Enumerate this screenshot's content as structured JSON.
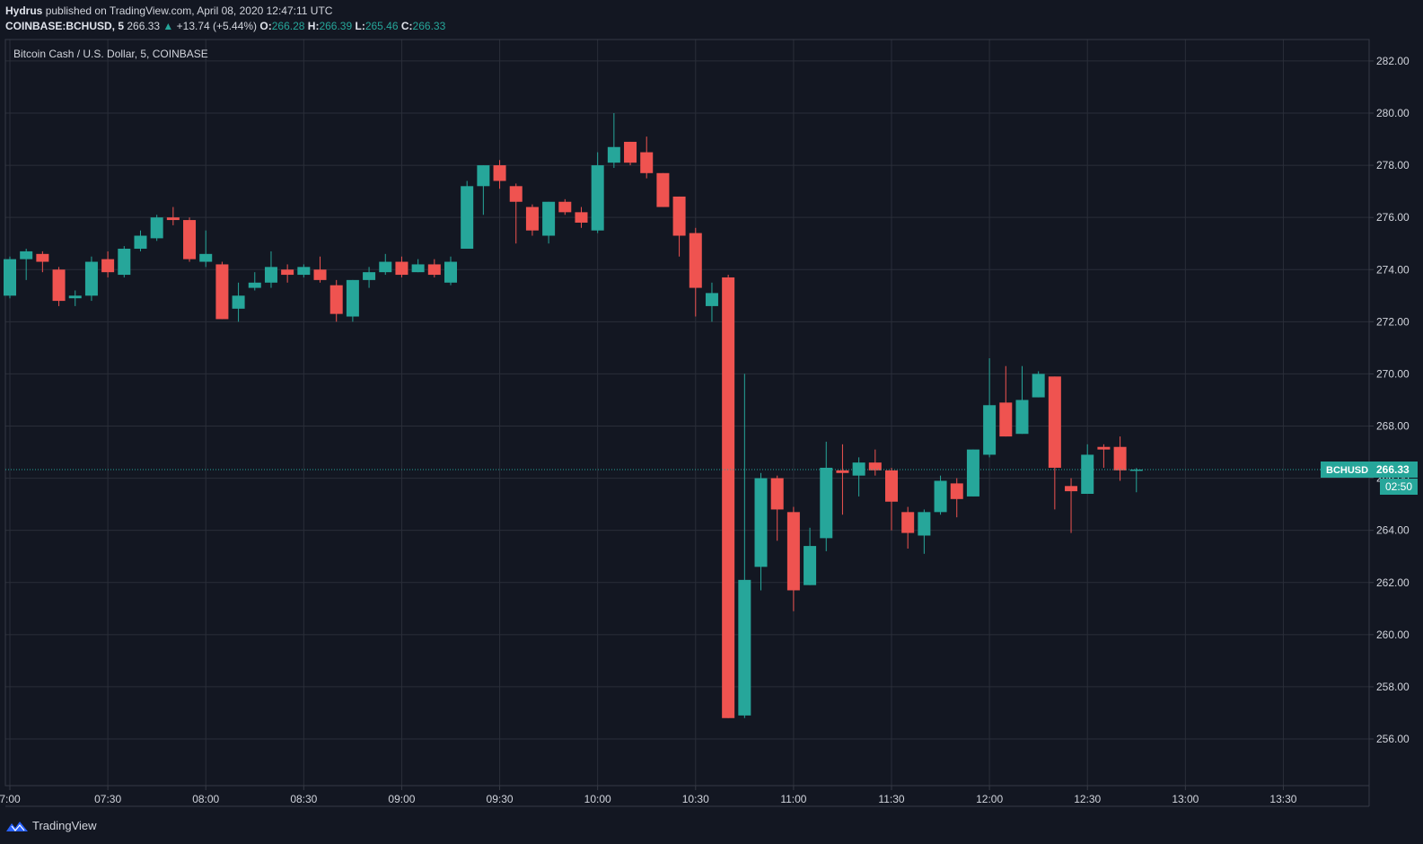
{
  "header": {
    "publisher": "Hydrus",
    "published_text": "published on TradingView.com, April 08, 2020 12:47:11 UTC",
    "symbol": "COINBASE:BCHUSD, 5",
    "last_price": "266.33",
    "change": "+13.74 (+5.44%)",
    "o_label": "O:",
    "o_value": "266.28",
    "h_label": "H:",
    "h_value": "266.39",
    "l_label": "L:",
    "l_value": "265.46",
    "c_label": "C:",
    "c_value": "266.33"
  },
  "footer": {
    "brand": "TradingView"
  },
  "colors": {
    "background": "#131722",
    "grid": "#2a2e39",
    "up": "#26a69a",
    "down": "#ef5350",
    "text": "#d1d4dc"
  },
  "chart_data": {
    "type": "candlestick",
    "title": "Bitcoin Cash / U.S. Dollar, 5, COINBASE",
    "ylim": [
      254.5,
      282.7
    ],
    "y_ticks": [
      "282.00",
      "280.00",
      "278.00",
      "276.00",
      "274.00",
      "272.00",
      "270.00",
      "268.00",
      "266.00",
      "264.00",
      "262.00",
      "260.00",
      "258.00",
      "256.00"
    ],
    "x_ticks": [
      "7:00",
      "07:30",
      "08:00",
      "08:30",
      "09:00",
      "09:30",
      "10:00",
      "10:30",
      "11:00",
      "11:30",
      "12:00",
      "12:30",
      "13:00",
      "13:30"
    ],
    "x_tick_positions": [
      "07:00",
      "07:30",
      "08:00",
      "08:30",
      "09:00",
      "09:30",
      "10:00",
      "10:30",
      "11:00",
      "11:30",
      "12:00",
      "12:30",
      "13:00",
      "13:30"
    ],
    "last_price_label": {
      "symbol": "BCHUSD",
      "price": "266.33",
      "value": 266.33,
      "countdown": "02:50"
    },
    "candles": [
      {
        "t": "07:00",
        "o": 273.0,
        "h": 274.5,
        "l": 272.9,
        "c": 274.4
      },
      {
        "t": "07:05",
        "o": 274.4,
        "h": 274.8,
        "l": 273.6,
        "c": 274.7
      },
      {
        "t": "07:10",
        "o": 274.6,
        "h": 274.7,
        "l": 273.9,
        "c": 274.3
      },
      {
        "t": "07:15",
        "o": 274.0,
        "h": 274.1,
        "l": 272.6,
        "c": 272.8
      },
      {
        "t": "07:20",
        "o": 272.9,
        "h": 273.2,
        "l": 272.6,
        "c": 273.0
      },
      {
        "t": "07:25",
        "o": 273.0,
        "h": 274.5,
        "l": 272.8,
        "c": 274.3
      },
      {
        "t": "07:30",
        "o": 274.4,
        "h": 274.7,
        "l": 273.7,
        "c": 273.9
      },
      {
        "t": "07:35",
        "o": 273.8,
        "h": 274.9,
        "l": 273.7,
        "c": 274.8
      },
      {
        "t": "07:40",
        "o": 274.8,
        "h": 275.5,
        "l": 274.7,
        "c": 275.3
      },
      {
        "t": "07:45",
        "o": 275.2,
        "h": 276.1,
        "l": 275.1,
        "c": 276.0
      },
      {
        "t": "07:50",
        "o": 276.0,
        "h": 276.4,
        "l": 275.7,
        "c": 275.9
      },
      {
        "t": "07:55",
        "o": 275.9,
        "h": 276.0,
        "l": 274.3,
        "c": 274.4
      },
      {
        "t": "08:00",
        "o": 274.3,
        "h": 275.5,
        "l": 274.1,
        "c": 274.6
      },
      {
        "t": "08:05",
        "o": 274.2,
        "h": 274.3,
        "l": 272.1,
        "c": 272.1
      },
      {
        "t": "08:10",
        "o": 272.5,
        "h": 273.5,
        "l": 272.0,
        "c": 273.0
      },
      {
        "t": "08:15",
        "o": 273.3,
        "h": 273.9,
        "l": 273.2,
        "c": 273.5
      },
      {
        "t": "08:20",
        "o": 273.5,
        "h": 274.7,
        "l": 273.3,
        "c": 274.1
      },
      {
        "t": "08:25",
        "o": 274.0,
        "h": 274.2,
        "l": 273.5,
        "c": 273.8
      },
      {
        "t": "08:30",
        "o": 273.8,
        "h": 274.2,
        "l": 273.7,
        "c": 274.1
      },
      {
        "t": "08:35",
        "o": 274.0,
        "h": 274.5,
        "l": 273.5,
        "c": 273.6
      },
      {
        "t": "08:40",
        "o": 273.4,
        "h": 273.6,
        "l": 272.0,
        "c": 272.3
      },
      {
        "t": "08:45",
        "o": 272.2,
        "h": 273.6,
        "l": 272.0,
        "c": 273.6
      },
      {
        "t": "08:50",
        "o": 273.6,
        "h": 274.1,
        "l": 273.3,
        "c": 273.9
      },
      {
        "t": "08:55",
        "o": 273.9,
        "h": 274.6,
        "l": 273.8,
        "c": 274.3
      },
      {
        "t": "09:00",
        "o": 274.3,
        "h": 274.5,
        "l": 273.7,
        "c": 273.8
      },
      {
        "t": "09:05",
        "o": 273.9,
        "h": 274.4,
        "l": 273.9,
        "c": 274.2
      },
      {
        "t": "09:10",
        "o": 274.2,
        "h": 274.4,
        "l": 273.7,
        "c": 273.8
      },
      {
        "t": "09:15",
        "o": 273.5,
        "h": 274.5,
        "l": 273.4,
        "c": 274.3
      },
      {
        "t": "09:20",
        "o": 274.8,
        "h": 277.4,
        "l": 274.8,
        "c": 277.2
      },
      {
        "t": "09:25",
        "o": 277.2,
        "h": 278.0,
        "l": 276.1,
        "c": 278.0
      },
      {
        "t": "09:30",
        "o": 278.0,
        "h": 278.2,
        "l": 277.1,
        "c": 277.4
      },
      {
        "t": "09:35",
        "o": 277.2,
        "h": 277.3,
        "l": 275.0,
        "c": 276.6
      },
      {
        "t": "09:40",
        "o": 276.4,
        "h": 276.5,
        "l": 275.3,
        "c": 275.5
      },
      {
        "t": "09:45",
        "o": 275.3,
        "h": 276.6,
        "l": 275.0,
        "c": 276.6
      },
      {
        "t": "09:50",
        "o": 276.6,
        "h": 276.7,
        "l": 276.1,
        "c": 276.2
      },
      {
        "t": "09:55",
        "o": 276.2,
        "h": 276.4,
        "l": 275.6,
        "c": 275.8
      },
      {
        "t": "10:00",
        "o": 275.5,
        "h": 278.5,
        "l": 275.4,
        "c": 278.0
      },
      {
        "t": "10:05",
        "o": 278.1,
        "h": 280.0,
        "l": 277.9,
        "c": 278.7
      },
      {
        "t": "10:10",
        "o": 278.9,
        "h": 278.9,
        "l": 278.0,
        "c": 278.1
      },
      {
        "t": "10:15",
        "o": 278.5,
        "h": 279.1,
        "l": 277.5,
        "c": 277.7
      },
      {
        "t": "10:20",
        "o": 277.7,
        "h": 277.7,
        "l": 276.4,
        "c": 276.4
      },
      {
        "t": "10:25",
        "o": 276.8,
        "h": 276.8,
        "l": 274.5,
        "c": 275.3
      },
      {
        "t": "10:30",
        "o": 275.4,
        "h": 275.6,
        "l": 272.2,
        "c": 273.3
      },
      {
        "t": "10:35",
        "o": 272.6,
        "h": 273.5,
        "l": 272.0,
        "c": 273.1
      },
      {
        "t": "10:40",
        "o": 273.7,
        "h": 273.8,
        "l": 256.8,
        "c": 256.8
      },
      {
        "t": "10:45",
        "o": 256.9,
        "h": 270.0,
        "l": 256.8,
        "c": 262.1
      },
      {
        "t": "10:50",
        "o": 262.6,
        "h": 266.2,
        "l": 261.7,
        "c": 266.0
      },
      {
        "t": "10:55",
        "o": 266.0,
        "h": 266.1,
        "l": 263.6,
        "c": 264.8
      },
      {
        "t": "11:00",
        "o": 264.7,
        "h": 264.9,
        "l": 260.9,
        "c": 261.7
      },
      {
        "t": "11:05",
        "o": 261.9,
        "h": 264.1,
        "l": 261.9,
        "c": 263.4
      },
      {
        "t": "11:10",
        "o": 263.7,
        "h": 267.4,
        "l": 263.2,
        "c": 266.4
      },
      {
        "t": "11:15",
        "o": 266.3,
        "h": 267.3,
        "l": 264.6,
        "c": 266.2
      },
      {
        "t": "11:20",
        "o": 266.1,
        "h": 266.8,
        "l": 265.3,
        "c": 266.6
      },
      {
        "t": "11:25",
        "o": 266.6,
        "h": 267.1,
        "l": 266.1,
        "c": 266.3
      },
      {
        "t": "11:30",
        "o": 266.3,
        "h": 266.4,
        "l": 264.0,
        "c": 265.1
      },
      {
        "t": "11:35",
        "o": 264.7,
        "h": 264.9,
        "l": 263.3,
        "c": 263.9
      },
      {
        "t": "11:40",
        "o": 263.8,
        "h": 264.8,
        "l": 263.1,
        "c": 264.7
      },
      {
        "t": "11:45",
        "o": 264.7,
        "h": 266.1,
        "l": 264.6,
        "c": 265.9
      },
      {
        "t": "11:50",
        "o": 265.8,
        "h": 266.0,
        "l": 264.5,
        "c": 265.2
      },
      {
        "t": "11:55",
        "o": 265.3,
        "h": 267.1,
        "l": 265.3,
        "c": 267.1
      },
      {
        "t": "12:00",
        "o": 266.9,
        "h": 270.6,
        "l": 266.8,
        "c": 268.8
      },
      {
        "t": "12:05",
        "o": 268.9,
        "h": 270.3,
        "l": 267.6,
        "c": 267.6
      },
      {
        "t": "12:10",
        "o": 267.7,
        "h": 270.3,
        "l": 267.7,
        "c": 269.0
      },
      {
        "t": "12:15",
        "o": 269.1,
        "h": 270.1,
        "l": 269.1,
        "c": 270.0
      },
      {
        "t": "12:20",
        "o": 269.9,
        "h": 269.9,
        "l": 264.8,
        "c": 266.4
      },
      {
        "t": "12:25",
        "o": 265.7,
        "h": 266.0,
        "l": 263.9,
        "c": 265.5
      },
      {
        "t": "12:30",
        "o": 265.4,
        "h": 267.3,
        "l": 265.4,
        "c": 266.9
      },
      {
        "t": "12:35",
        "o": 267.2,
        "h": 267.3,
        "l": 266.4,
        "c": 267.1
      },
      {
        "t": "12:40",
        "o": 267.2,
        "h": 267.6,
        "l": 265.9,
        "c": 266.3
      },
      {
        "t": "12:45",
        "o": 266.28,
        "h": 266.39,
        "l": 265.46,
        "c": 266.33
      }
    ]
  }
}
